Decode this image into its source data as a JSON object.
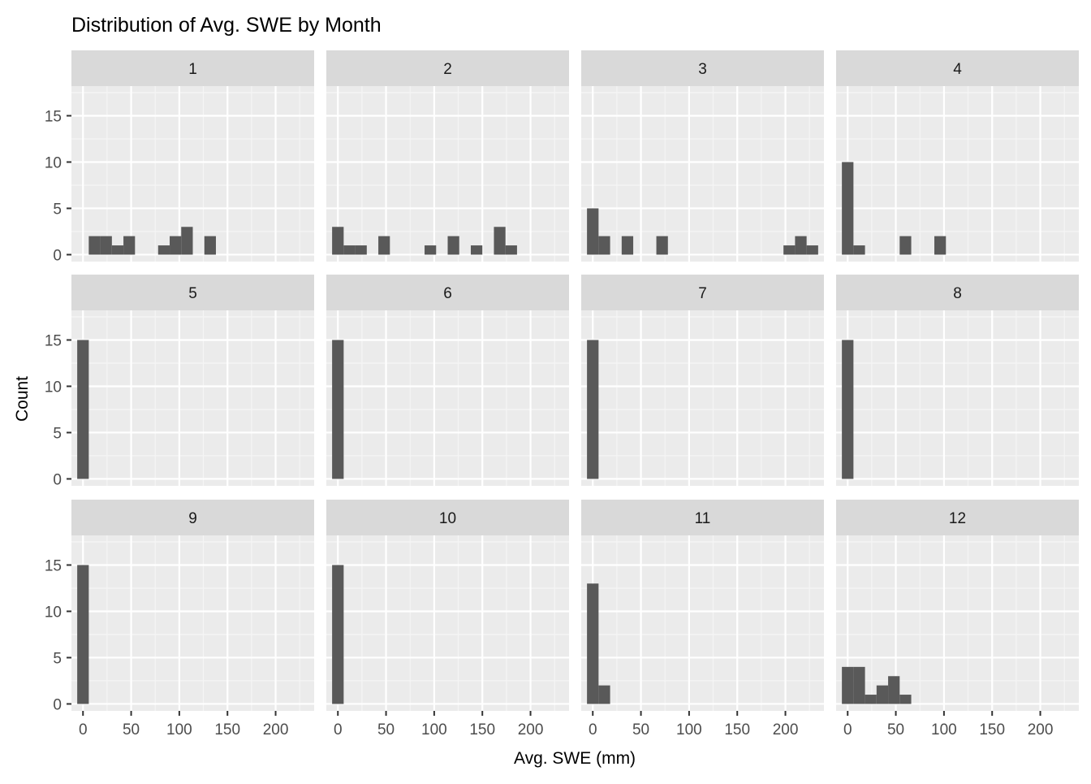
{
  "chart_data": {
    "type": "bar",
    "subtype": "faceted-histogram",
    "title": "Distribution of Avg. SWE by Month",
    "xlabel": "Avg. SWE (mm)",
    "ylabel": "Count",
    "xlim": [
      -12,
      240
    ],
    "ylim": [
      -0.75,
      18.2
    ],
    "x_ticks": [
      0,
      50,
      100,
      150,
      200
    ],
    "y_ticks": [
      0,
      5,
      10,
      15
    ],
    "bin_width": 12,
    "grid": true,
    "legend": "none",
    "colors": {
      "bar": "#595959",
      "panel_background": "#ebebeb",
      "grid_major": "#ffffff",
      "grid_minor": "#f5f5f5",
      "strip_background": "#d9d9d9",
      "strip_text": "#1a1a1a",
      "axis_text": "#4d4d4d",
      "tick": "#333333",
      "title": "#000000"
    },
    "facets": [
      {
        "label": "1",
        "bins": [
          [
            12,
            2
          ],
          [
            24,
            2
          ],
          [
            36,
            1
          ],
          [
            48,
            2
          ],
          [
            84,
            1
          ],
          [
            96,
            2
          ],
          [
            108,
            3
          ],
          [
            132,
            2
          ]
        ]
      },
      {
        "label": "2",
        "bins": [
          [
            0,
            3
          ],
          [
            12,
            1
          ],
          [
            24,
            1
          ],
          [
            48,
            2
          ],
          [
            96,
            1
          ],
          [
            120,
            2
          ],
          [
            144,
            1
          ],
          [
            168,
            3
          ],
          [
            180,
            1
          ]
        ]
      },
      {
        "label": "3",
        "bins": [
          [
            0,
            5
          ],
          [
            12,
            2
          ],
          [
            36,
            2
          ],
          [
            72,
            2
          ],
          [
            204,
            1
          ],
          [
            216,
            2
          ],
          [
            228,
            1
          ]
        ]
      },
      {
        "label": "4",
        "bins": [
          [
            0,
            10
          ],
          [
            12,
            1
          ],
          [
            60,
            2
          ],
          [
            96,
            2
          ]
        ]
      },
      {
        "label": "5",
        "bins": [
          [
            0,
            15
          ]
        ]
      },
      {
        "label": "6",
        "bins": [
          [
            0,
            15
          ]
        ]
      },
      {
        "label": "7",
        "bins": [
          [
            0,
            15
          ]
        ]
      },
      {
        "label": "8",
        "bins": [
          [
            0,
            15
          ]
        ]
      },
      {
        "label": "9",
        "bins": [
          [
            0,
            15
          ]
        ]
      },
      {
        "label": "10",
        "bins": [
          [
            0,
            15
          ]
        ]
      },
      {
        "label": "11",
        "bins": [
          [
            0,
            13
          ],
          [
            12,
            2
          ]
        ]
      },
      {
        "label": "12",
        "bins": [
          [
            0,
            4
          ],
          [
            12,
            4
          ],
          [
            24,
            1
          ],
          [
            36,
            2
          ],
          [
            48,
            3
          ],
          [
            60,
            1
          ]
        ]
      }
    ]
  }
}
